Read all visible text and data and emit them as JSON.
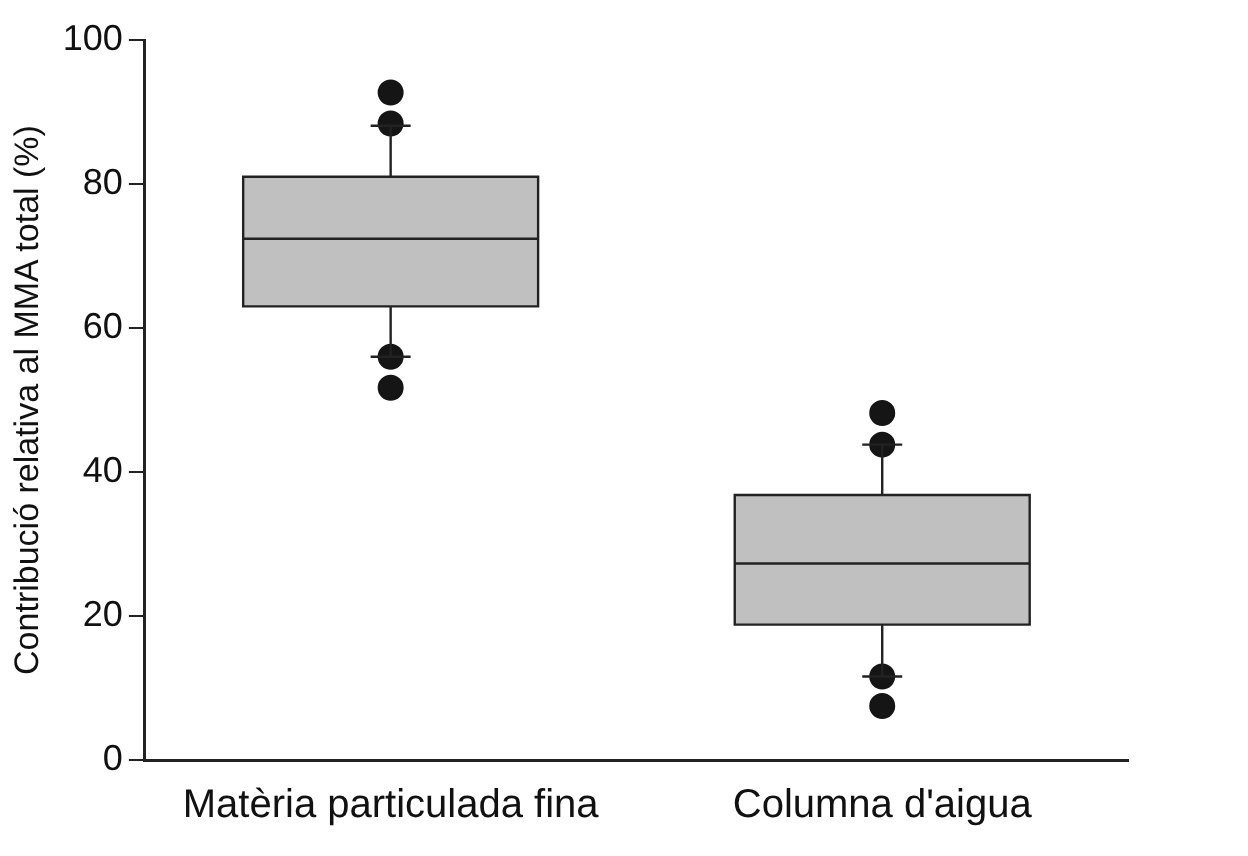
{
  "chart_data": {
    "type": "box",
    "ylabel": "Contribució relativa al MMA total (%)",
    "categories": [
      "Matèria particulada fina",
      "Columna d'aigua"
    ],
    "color": "#c0c0c0",
    "marker": "circle",
    "boxes": [
      {
        "low": 56.0,
        "q1": 63.0,
        "median": 72.4,
        "q3": 81.0,
        "high": 88.1,
        "outliers": [
          92.7,
          88.4,
          56.0,
          51.7
        ]
      },
      {
        "low": 11.6,
        "q1": 18.8,
        "median": 27.3,
        "q3": 36.8,
        "high": 43.8,
        "outliers": [
          48.2,
          43.8,
          11.6,
          7.5
        ]
      }
    ],
    "ylim": [
      0,
      100
    ],
    "yticks": [
      0,
      20,
      40,
      60,
      80,
      100
    ]
  }
}
